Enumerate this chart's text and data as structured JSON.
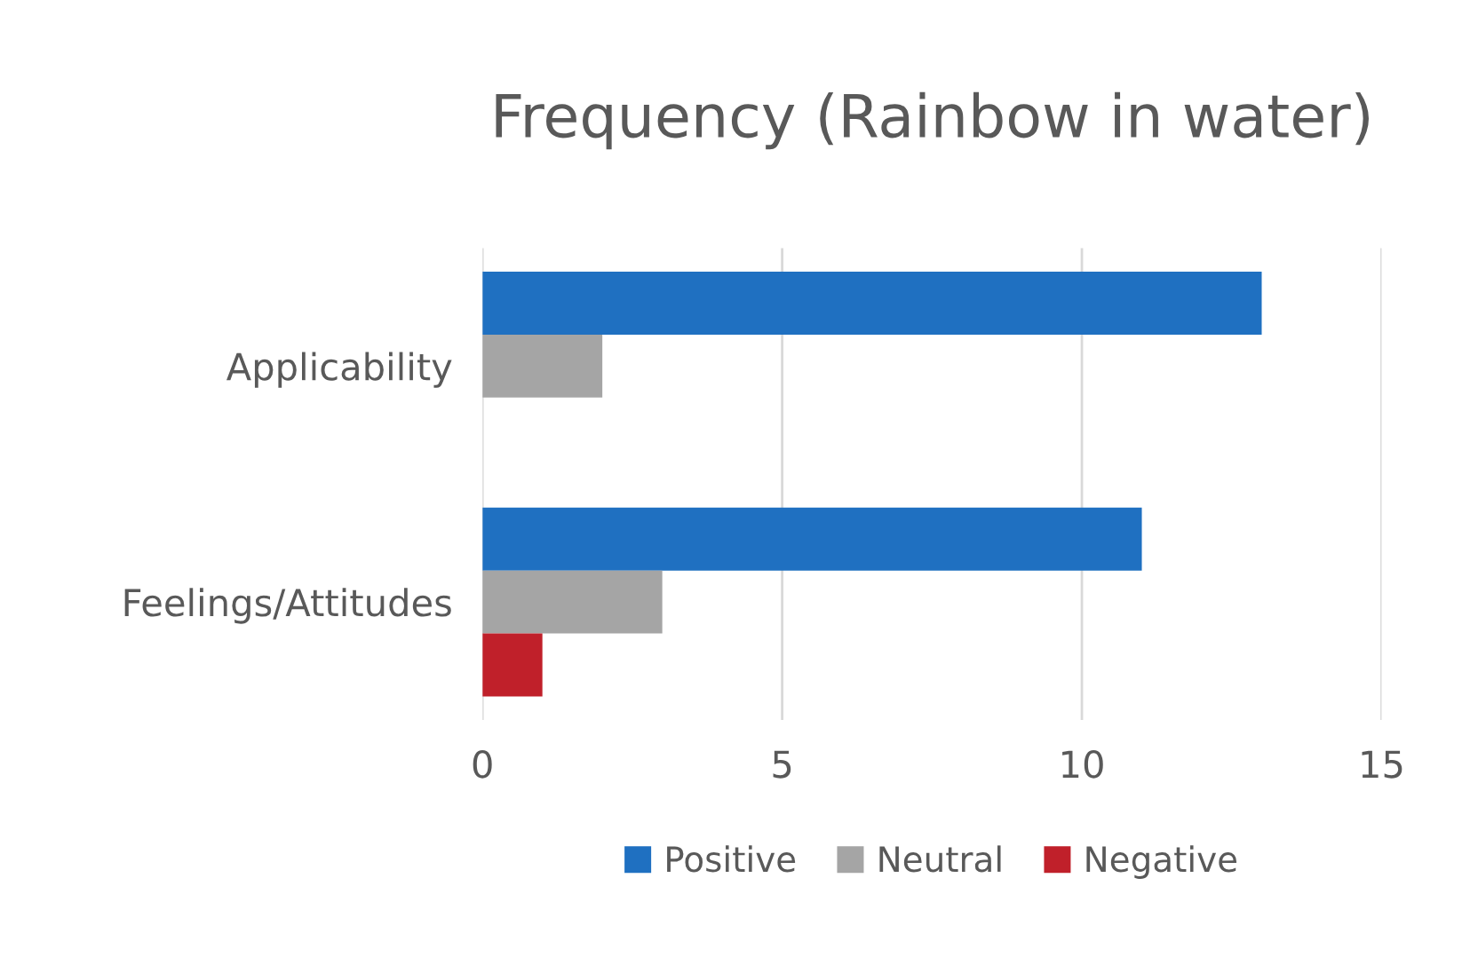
{
  "chart_data": {
    "type": "bar",
    "orientation": "horizontal",
    "title": "Frequency (Rainbow in water)",
    "categories": [
      "Applicability",
      "Feelings/Attitudes"
    ],
    "series": [
      {
        "name": "Positive",
        "color": "#1f70c1",
        "values": [
          13,
          11
        ]
      },
      {
        "name": "Neutral",
        "color": "#a5a5a5",
        "values": [
          2,
          3
        ]
      },
      {
        "name": "Negative",
        "color": "#c0202a",
        "values": [
          null,
          1
        ]
      }
    ],
    "xlim": [
      0,
      15
    ],
    "xticks": [
      0,
      5,
      10,
      15
    ],
    "grid": "x",
    "legend": "bottom"
  }
}
